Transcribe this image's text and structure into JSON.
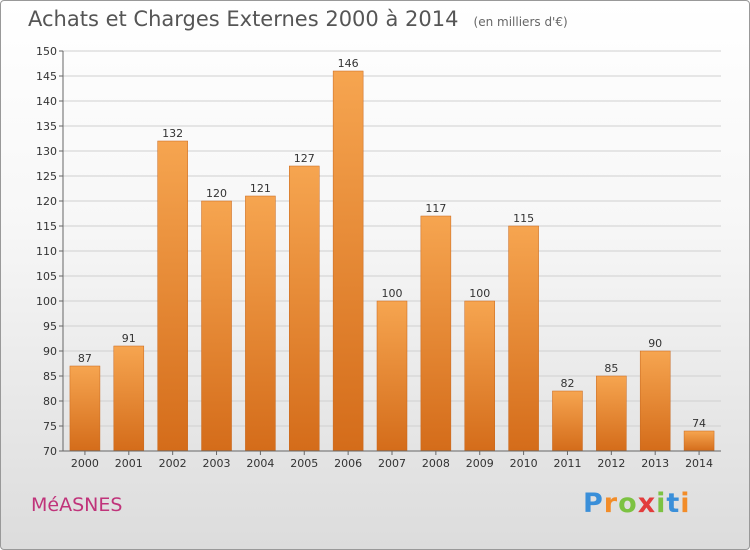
{
  "chart_data": {
    "type": "bar",
    "title": "Achats et Charges Externes 2000 à 2014",
    "unit_note": "(en milliers d'€)",
    "categories": [
      "2000",
      "2001",
      "2002",
      "2003",
      "2004",
      "2005",
      "2006",
      "2007",
      "2008",
      "2009",
      "2010",
      "2011",
      "2012",
      "2013",
      "2014"
    ],
    "values": [
      87,
      91,
      132,
      120,
      121,
      127,
      146,
      100,
      117,
      100,
      115,
      82,
      85,
      90,
      74
    ],
    "ylim": [
      70,
      150
    ],
    "yticks": [
      70,
      75,
      80,
      85,
      90,
      95,
      100,
      105,
      110,
      115,
      120,
      125,
      130,
      135,
      140,
      145,
      150
    ],
    "grid": true,
    "legend": "none",
    "bar_color_top": "#f6a550",
    "bar_color_bottom": "#d46c1a"
  },
  "footer": {
    "commune": "MéASNES",
    "brand": "Proxiti",
    "brand_colors": [
      "#3a8fd9",
      "#f28c28",
      "#7cc242",
      "#e23c3c",
      "#7cc242",
      "#3a8fd9",
      "#f28c28"
    ]
  }
}
